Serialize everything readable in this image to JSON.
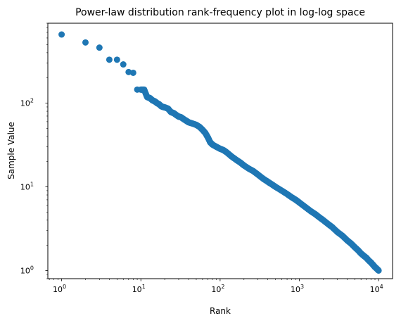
{
  "chart_data": {
    "type": "scatter",
    "title": "Power-law distribution rank-frequency plot in log-log space",
    "xlabel": "Rank",
    "ylabel": "Sample Value",
    "xscale": "log",
    "yscale": "log",
    "xlim": [
      0.67,
      15000
    ],
    "ylim": [
      0.8,
      900
    ],
    "grid": false,
    "legend": "none",
    "marker_color": "#1f77b4",
    "x_ticks": [
      {
        "value": 1,
        "base": "10",
        "exp": "0"
      },
      {
        "value": 10,
        "base": "10",
        "exp": "1"
      },
      {
        "value": 100,
        "base": "10",
        "exp": "2"
      },
      {
        "value": 1000,
        "base": "10",
        "exp": "3"
      },
      {
        "value": 10000,
        "base": "10",
        "exp": "4"
      }
    ],
    "y_ticks": [
      {
        "value": 1,
        "base": "10",
        "exp": "0"
      },
      {
        "value": 10,
        "base": "10",
        "exp": "1"
      },
      {
        "value": 100,
        "base": "10",
        "exp": "2"
      }
    ],
    "points": [
      [
        1,
        660
      ],
      [
        2,
        530
      ],
      [
        3,
        460
      ],
      [
        4,
        330
      ],
      [
        5,
        330
      ],
      [
        6,
        290
      ],
      [
        7,
        235
      ],
      [
        8,
        230
      ],
      [
        9,
        145
      ],
      [
        10,
        145
      ],
      [
        11,
        145
      ],
      [
        12,
        118
      ],
      [
        13,
        115
      ],
      [
        14,
        108
      ],
      [
        15,
        105
      ],
      [
        16,
        100
      ],
      [
        17,
        97
      ],
      [
        18,
        92
      ],
      [
        19,
        90
      ],
      [
        20,
        89
      ],
      [
        22,
        86
      ],
      [
        24,
        78
      ],
      [
        26,
        76
      ],
      [
        28,
        72
      ],
      [
        30,
        69
      ],
      [
        32,
        68
      ],
      [
        35,
        64
      ],
      [
        38,
        61
      ],
      [
        40,
        59
      ],
      [
        45,
        57
      ],
      [
        50,
        55
      ],
      [
        55,
        52
      ],
      [
        60,
        48
      ],
      [
        65,
        44
      ],
      [
        70,
        39
      ],
      [
        75,
        34
      ],
      [
        80,
        32
      ],
      [
        90,
        30
      ],
      [
        100,
        28.5
      ],
      [
        110,
        27.5
      ],
      [
        120,
        26
      ],
      [
        140,
        23
      ],
      [
        160,
        21
      ],
      [
        180,
        19.5
      ],
      [
        200,
        18
      ],
      [
        230,
        16.5
      ],
      [
        260,
        15.5
      ],
      [
        300,
        14
      ],
      [
        350,
        12.5
      ],
      [
        400,
        11.5
      ],
      [
        450,
        10.7
      ],
      [
        500,
        10
      ],
      [
        600,
        9
      ],
      [
        700,
        8.2
      ],
      [
        800,
        7.5
      ],
      [
        900,
        7
      ],
      [
        1000,
        6.5
      ],
      [
        1200,
        5.7
      ],
      [
        1400,
        5.1
      ],
      [
        1600,
        4.7
      ],
      [
        1800,
        4.3
      ],
      [
        2000,
        4
      ],
      [
        2300,
        3.6
      ],
      [
        2600,
        3.3
      ],
      [
        3000,
        2.9
      ],
      [
        3500,
        2.6
      ],
      [
        4000,
        2.3
      ],
      [
        4500,
        2.1
      ],
      [
        5000,
        1.9
      ],
      [
        5500,
        1.75
      ],
      [
        6000,
        1.6
      ],
      [
        6500,
        1.5
      ],
      [
        7000,
        1.42
      ],
      [
        7500,
        1.32
      ],
      [
        8000,
        1.25
      ],
      [
        8500,
        1.17
      ],
      [
        9000,
        1.1
      ],
      [
        9500,
        1.05
      ],
      [
        10000,
        1.0
      ]
    ]
  }
}
